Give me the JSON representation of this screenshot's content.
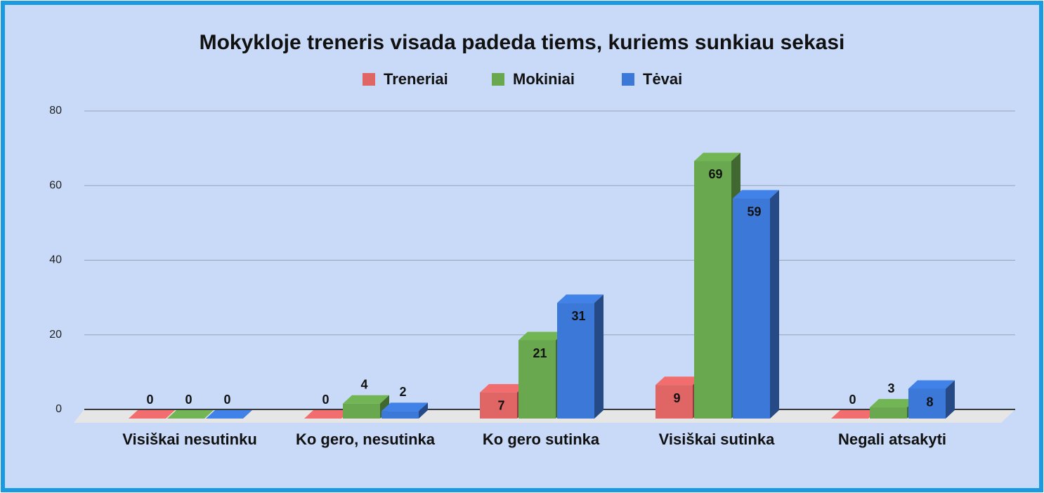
{
  "chart_data": {
    "type": "bar3d",
    "title": "Mokykloje treneris visada padeda tiems, kuriems sunkiau sekasi",
    "categories": [
      "Visiškai nesutinku",
      "Ko gero, nesutinka",
      "Ko gero sutinka",
      "Visiškai sutinka",
      "Negali atsakyti"
    ],
    "series": [
      {
        "name": "Treneriai",
        "color": "#e06666",
        "values": [
          0,
          0,
          7,
          9,
          0
        ]
      },
      {
        "name": "Mokiniai",
        "color": "#6aa84f",
        "values": [
          0,
          4,
          21,
          69,
          3
        ]
      },
      {
        "name": "Tėvai",
        "color": "#3c78d8",
        "values": [
          0,
          2,
          31,
          59,
          8
        ]
      }
    ],
    "ylim": [
      0,
      80
    ],
    "yticks": [
      0,
      20,
      40,
      60,
      80
    ],
    "grid": true,
    "legend": "top"
  }
}
